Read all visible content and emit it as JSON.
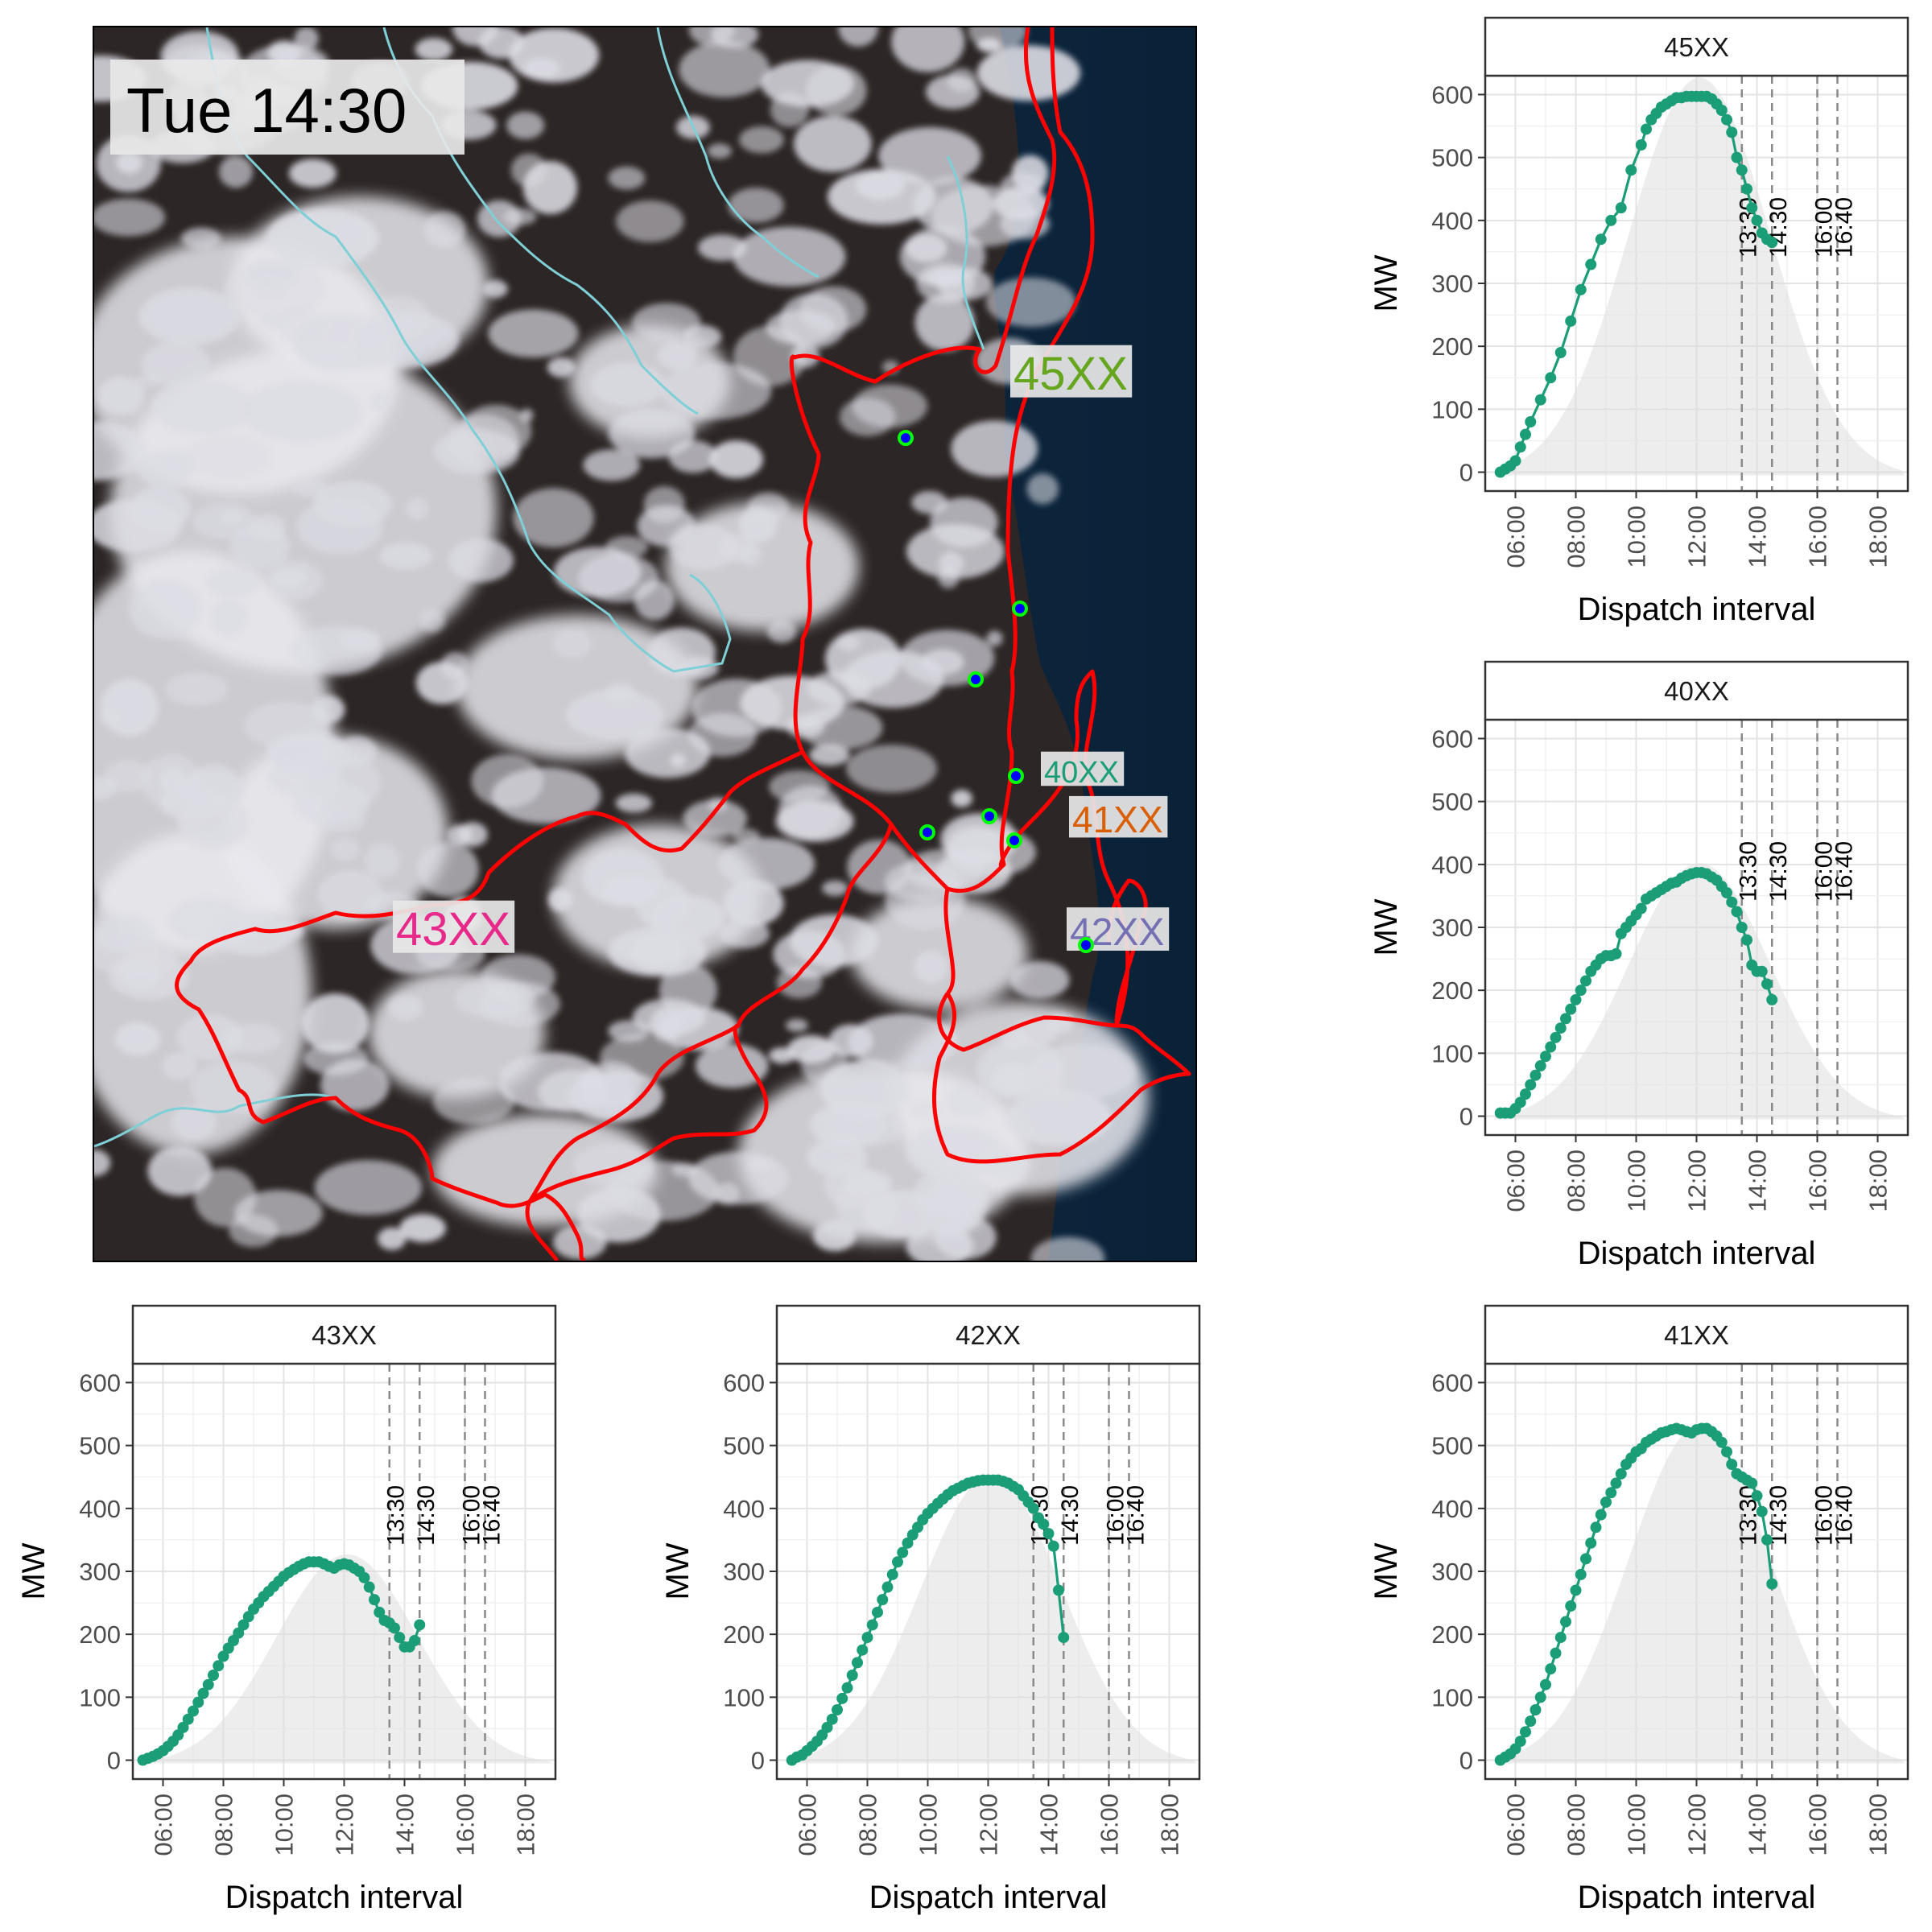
{
  "map": {
    "time_label": "Tue 14:30",
    "regions": [
      {
        "name": "45XX",
        "color": "#66a61e"
      },
      {
        "name": "40XX",
        "color": "#1b9e77"
      },
      {
        "name": "41XX",
        "color": "#d95f02"
      },
      {
        "name": "42XX",
        "color": "#7570b3"
      },
      {
        "name": "43XX",
        "color": "#e7298a"
      }
    ],
    "boundary_color": "#ff0000",
    "state_border_color": "#7ecfd6",
    "site_fill": "#0000ff",
    "site_stroke": "#00ff00"
  },
  "chart_data": [
    {
      "type": "line",
      "facet": "45XX",
      "xlabel": "Dispatch interval",
      "ylabel": "MW",
      "ylim": [
        -30,
        630
      ],
      "xlim": [
        "05:00",
        "19:00"
      ],
      "x_ticks": [
        "06:00",
        "08:00",
        "10:00",
        "12:00",
        "14:00",
        "16:00",
        "18:00"
      ],
      "y_ticks": [
        0,
        100,
        200,
        300,
        400,
        500,
        600
      ],
      "vlines": [
        "13:30",
        "14:30",
        "16:00",
        "16:40"
      ],
      "capacity_peak": 635,
      "series": [
        {
          "x": [
            "05:30",
            "05:40",
            "05:50",
            "06:00",
            "06:10",
            "06:20",
            "06:30",
            "06:50",
            "07:10",
            "07:30",
            "07:50",
            "08:10",
            "08:30",
            "08:50",
            "09:10",
            "09:30",
            "09:50",
            "10:10",
            "10:20",
            "10:30",
            "10:40",
            "10:50",
            "11:00",
            "11:10",
            "11:20",
            "11:30",
            "11:40",
            "11:50",
            "12:00",
            "12:10",
            "12:20",
            "12:30",
            "12:40",
            "12:50",
            "13:00",
            "13:10",
            "13:20",
            "13:30",
            "13:40",
            "13:50",
            "14:00",
            "14:10",
            "14:20",
            "14:30"
          ],
          "y": [
            0,
            5,
            10,
            18,
            40,
            60,
            80,
            115,
            150,
            190,
            240,
            290,
            330,
            370,
            400,
            420,
            480,
            520,
            545,
            560,
            570,
            580,
            585,
            590,
            595,
            595,
            597,
            597,
            597,
            597,
            597,
            593,
            585,
            575,
            560,
            540,
            500,
            480,
            450,
            420,
            400,
            380,
            370,
            365
          ]
        }
      ]
    },
    {
      "type": "line",
      "facet": "40XX",
      "xlabel": "Dispatch interval",
      "ylabel": "MW",
      "ylim": [
        -30,
        630
      ],
      "xlim": [
        "05:00",
        "19:00"
      ],
      "x_ticks": [
        "06:00",
        "08:00",
        "10:00",
        "12:00",
        "14:00",
        "16:00",
        "18:00"
      ],
      "y_ticks": [
        0,
        100,
        200,
        300,
        400,
        500,
        600
      ],
      "vlines": [
        "13:30",
        "14:30",
        "16:00",
        "16:40"
      ],
      "capacity_peak": 410,
      "series": [
        {
          "x": [
            "05:30",
            "05:40",
            "05:50",
            "06:00",
            "06:10",
            "06:20",
            "06:30",
            "06:40",
            "06:50",
            "07:00",
            "07:10",
            "07:20",
            "07:30",
            "07:40",
            "07:50",
            "08:00",
            "08:10",
            "08:20",
            "08:30",
            "08:40",
            "08:50",
            "09:00",
            "09:10",
            "09:20",
            "09:30",
            "09:40",
            "09:50",
            "10:00",
            "10:10",
            "10:20",
            "10:30",
            "10:40",
            "10:50",
            "11:00",
            "11:10",
            "11:20",
            "11:30",
            "11:40",
            "11:50",
            "12:00",
            "12:10",
            "12:20",
            "12:30",
            "12:40",
            "12:50",
            "13:00",
            "13:10",
            "13:20",
            "13:30",
            "13:40",
            "13:50",
            "14:00",
            "14:10",
            "14:20",
            "14:30"
          ],
          "y": [
            5,
            5,
            5,
            12,
            22,
            35,
            50,
            65,
            80,
            95,
            110,
            125,
            140,
            155,
            170,
            185,
            200,
            215,
            230,
            240,
            250,
            255,
            255,
            258,
            290,
            300,
            310,
            320,
            330,
            345,
            350,
            355,
            360,
            365,
            370,
            372,
            378,
            382,
            385,
            387,
            387,
            385,
            380,
            375,
            365,
            355,
            340,
            325,
            300,
            280,
            240,
            230,
            230,
            210,
            185
          ]
        }
      ]
    },
    {
      "type": "line",
      "facet": "43XX",
      "xlabel": "Dispatch interval",
      "ylabel": "MW",
      "ylim": [
        -30,
        630
      ],
      "xlim": [
        "05:00",
        "19:00"
      ],
      "x_ticks": [
        "06:00",
        "08:00",
        "10:00",
        "12:00",
        "14:00",
        "16:00",
        "18:00"
      ],
      "y_ticks": [
        0,
        100,
        200,
        300,
        400,
        500,
        600
      ],
      "vlines": [
        "13:30",
        "14:30",
        "16:00",
        "16:40"
      ],
      "capacity_peak": 335,
      "series": [
        {
          "x": [
            "05:20",
            "05:30",
            "05:40",
            "05:50",
            "06:00",
            "06:10",
            "06:20",
            "06:30",
            "06:40",
            "06:50",
            "07:00",
            "07:10",
            "07:20",
            "07:30",
            "07:40",
            "07:50",
            "08:00",
            "08:10",
            "08:20",
            "08:30",
            "08:40",
            "08:50",
            "09:00",
            "09:10",
            "09:20",
            "09:30",
            "09:40",
            "09:50",
            "10:00",
            "10:10",
            "10:20",
            "10:30",
            "10:40",
            "10:50",
            "11:00",
            "11:10",
            "11:20",
            "11:30",
            "11:40",
            "11:50",
            "12:00",
            "12:10",
            "12:20",
            "12:30",
            "12:40",
            "12:50",
            "13:00",
            "13:10",
            "13:20",
            "13:30",
            "13:40",
            "13:50",
            "14:00",
            "14:10",
            "14:20",
            "14:30"
          ],
          "y": [
            0,
            3,
            6,
            10,
            15,
            22,
            30,
            40,
            52,
            65,
            78,
            92,
            106,
            120,
            135,
            150,
            165,
            178,
            190,
            202,
            215,
            228,
            240,
            250,
            260,
            268,
            276,
            284,
            292,
            298,
            303,
            308,
            312,
            315,
            315,
            315,
            312,
            308,
            305,
            310,
            312,
            310,
            305,
            300,
            290,
            275,
            255,
            235,
            222,
            218,
            210,
            195,
            180,
            180,
            190,
            215
          ]
        }
      ]
    },
    {
      "type": "line",
      "facet": "42XX",
      "xlabel": "Dispatch interval",
      "ylabel": "MW",
      "ylim": [
        -30,
        630
      ],
      "xlim": [
        "05:00",
        "19:00"
      ],
      "x_ticks": [
        "06:00",
        "08:00",
        "10:00",
        "12:00",
        "14:00",
        "16:00",
        "18:00"
      ],
      "y_ticks": [
        0,
        100,
        200,
        300,
        400,
        500,
        600
      ],
      "vlines": [
        "13:30",
        "14:30",
        "16:00",
        "16:40"
      ],
      "capacity_peak": 460,
      "series": [
        {
          "x": [
            "05:30",
            "05:40",
            "05:50",
            "06:00",
            "06:10",
            "06:20",
            "06:30",
            "06:40",
            "06:50",
            "07:00",
            "07:10",
            "07:20",
            "07:30",
            "07:40",
            "07:50",
            "08:00",
            "08:10",
            "08:20",
            "08:30",
            "08:40",
            "08:50",
            "09:00",
            "09:10",
            "09:20",
            "09:30",
            "09:40",
            "09:50",
            "10:00",
            "10:10",
            "10:20",
            "10:30",
            "10:40",
            "10:50",
            "11:00",
            "11:10",
            "11:20",
            "11:30",
            "11:40",
            "11:50",
            "12:00",
            "12:10",
            "12:20",
            "12:30",
            "12:40",
            "12:50",
            "13:00",
            "13:10",
            "13:20",
            "13:30",
            "13:40",
            "13:50",
            "14:00",
            "14:10",
            "14:20",
            "14:30"
          ],
          "y": [
            0,
            5,
            8,
            15,
            22,
            30,
            40,
            52,
            65,
            80,
            98,
            115,
            135,
            155,
            175,
            195,
            215,
            235,
            255,
            275,
            295,
            315,
            330,
            345,
            358,
            370,
            382,
            392,
            400,
            408,
            415,
            422,
            428,
            432,
            436,
            440,
            442,
            444,
            445,
            445,
            445,
            445,
            443,
            440,
            435,
            430,
            420,
            410,
            400,
            385,
            375,
            360,
            340,
            270,
            195
          ]
        }
      ]
    },
    {
      "type": "line",
      "facet": "41XX",
      "xlabel": "Dispatch interval",
      "ylabel": "MW",
      "ylim": [
        -30,
        630
      ],
      "xlim": [
        "05:00",
        "19:00"
      ],
      "x_ticks": [
        "06:00",
        "08:00",
        "10:00",
        "12:00",
        "14:00",
        "16:00",
        "18:00"
      ],
      "y_ticks": [
        0,
        100,
        200,
        300,
        400,
        500,
        600
      ],
      "vlines": [
        "13:30",
        "14:30",
        "16:00",
        "16:40"
      ],
      "capacity_peak": 540,
      "series": [
        {
          "x": [
            "05:30",
            "05:40",
            "05:50",
            "06:00",
            "06:10",
            "06:20",
            "06:30",
            "06:40",
            "06:50",
            "07:00",
            "07:10",
            "07:20",
            "07:30",
            "07:40",
            "07:50",
            "08:00",
            "08:10",
            "08:20",
            "08:30",
            "08:40",
            "08:50",
            "09:00",
            "09:10",
            "09:20",
            "09:30",
            "09:40",
            "09:50",
            "10:00",
            "10:10",
            "10:20",
            "10:30",
            "10:40",
            "10:50",
            "11:00",
            "11:10",
            "11:20",
            "11:30",
            "11:40",
            "11:50",
            "12:00",
            "12:10",
            "12:20",
            "12:30",
            "12:40",
            "12:50",
            "13:00",
            "13:10",
            "13:20",
            "13:30",
            "13:40",
            "13:50",
            "14:00",
            "14:10",
            "14:20",
            "14:30"
          ],
          "y": [
            0,
            5,
            10,
            18,
            30,
            45,
            62,
            80,
            100,
            120,
            145,
            170,
            195,
            220,
            245,
            270,
            295,
            320,
            345,
            370,
            390,
            410,
            425,
            440,
            455,
            470,
            480,
            490,
            495,
            505,
            510,
            515,
            520,
            522,
            525,
            527,
            525,
            522,
            520,
            525,
            527,
            527,
            522,
            515,
            505,
            490,
            470,
            455,
            450,
            445,
            440,
            420,
            395,
            350,
            280
          ]
        }
      ]
    }
  ]
}
